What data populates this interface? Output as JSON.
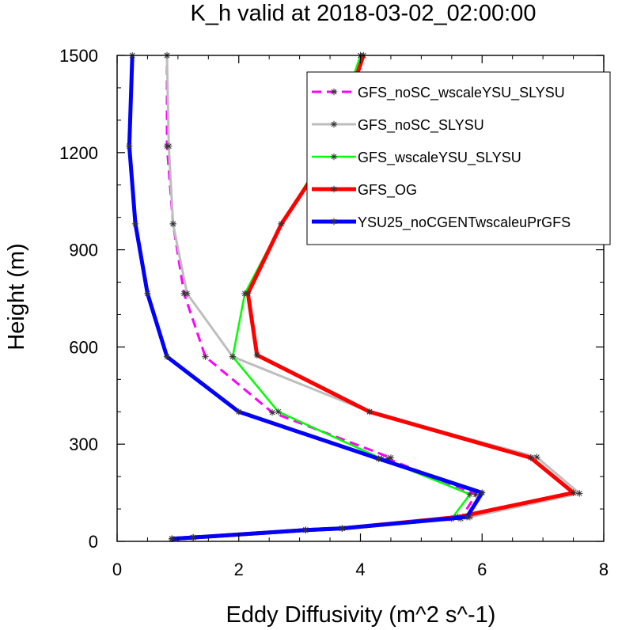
{
  "chart_data": {
    "type": "line",
    "title": "K_h valid at 2018-03-02_02:00:00",
    "xlabel": "Eddy Diffusivity (m^2 s^-1)",
    "ylabel": "Height (m)",
    "xlim": [
      0,
      8
    ],
    "ylim": [
      0,
      1500
    ],
    "xticks": [
      "0",
      "2",
      "4",
      "6",
      "8"
    ],
    "yticks": [
      "0",
      "300",
      "600",
      "900",
      "1200",
      "1500"
    ],
    "grid": false,
    "legend_position": "top-right",
    "series": [
      {
        "name": "GFS_noSC_wscaleYSU_SLYSU",
        "color": "#ff00ff",
        "dash": true,
        "points": [
          [
            0.9,
            8
          ],
          [
            1.25,
            12
          ],
          [
            3.1,
            35
          ],
          [
            3.7,
            40
          ],
          [
            5.65,
            70
          ],
          [
            5.9,
            145
          ],
          [
            4.45,
            255
          ],
          [
            4.5,
            258
          ],
          [
            2.55,
            398
          ],
          [
            1.45,
            570
          ],
          [
            1.1,
            765
          ],
          [
            0.92,
            980
          ],
          [
            0.82,
            1220
          ],
          [
            0.82,
            1500
          ]
        ]
      },
      {
        "name": "GFS_noSC_SLYSU",
        "color": "#bebebe",
        "dash": false,
        "points": [
          [
            0.9,
            8
          ],
          [
            1.25,
            12
          ],
          [
            3.1,
            35
          ],
          [
            3.7,
            40
          ],
          [
            5.8,
            75
          ],
          [
            7.6,
            148
          ],
          [
            6.9,
            260
          ],
          [
            4.15,
            400
          ],
          [
            1.9,
            570
          ],
          [
            1.15,
            765
          ],
          [
            0.92,
            980
          ],
          [
            0.85,
            1220
          ],
          [
            0.82,
            1500
          ]
        ]
      },
      {
        "name": "GFS_wscaleYSU_SLYSU",
        "color": "#00ff00",
        "dash": false,
        "points": [
          [
            0.9,
            8
          ],
          [
            1.25,
            12
          ],
          [
            3.1,
            35
          ],
          [
            3.7,
            40
          ],
          [
            5.5,
            70
          ],
          [
            5.8,
            145
          ],
          [
            4.35,
            255
          ],
          [
            2.65,
            400
          ],
          [
            1.9,
            570
          ],
          [
            2.1,
            765
          ],
          [
            2.7,
            980
          ],
          [
            3.5,
            1220
          ],
          [
            4.0,
            1500
          ]
        ]
      },
      {
        "name": "GFS_OG",
        "color": "#ff0000",
        "dash": false,
        "points": [
          [
            0.9,
            8
          ],
          [
            1.25,
            12
          ],
          [
            3.1,
            35
          ],
          [
            3.7,
            40
          ],
          [
            5.6,
            75
          ],
          [
            7.5,
            150
          ],
          [
            6.8,
            258
          ],
          [
            4.15,
            400
          ],
          [
            2.3,
            575
          ],
          [
            2.15,
            765
          ],
          [
            2.7,
            980
          ],
          [
            3.55,
            1220
          ],
          [
            4.05,
            1500
          ]
        ]
      },
      {
        "name": "YSU25_noCGENTwscaleuPrGFS",
        "color": "#0000ff",
        "dash": false,
        "points": [
          [
            0.9,
            8
          ],
          [
            1.25,
            12
          ],
          [
            3.1,
            35
          ],
          [
            3.7,
            40
          ],
          [
            5.75,
            75
          ],
          [
            6.0,
            150
          ],
          [
            4.3,
            255
          ],
          [
            2.0,
            400
          ],
          [
            0.82,
            570
          ],
          [
            0.5,
            765
          ],
          [
            0.3,
            980
          ],
          [
            0.2,
            1220
          ],
          [
            0.25,
            1500
          ]
        ]
      }
    ]
  }
}
